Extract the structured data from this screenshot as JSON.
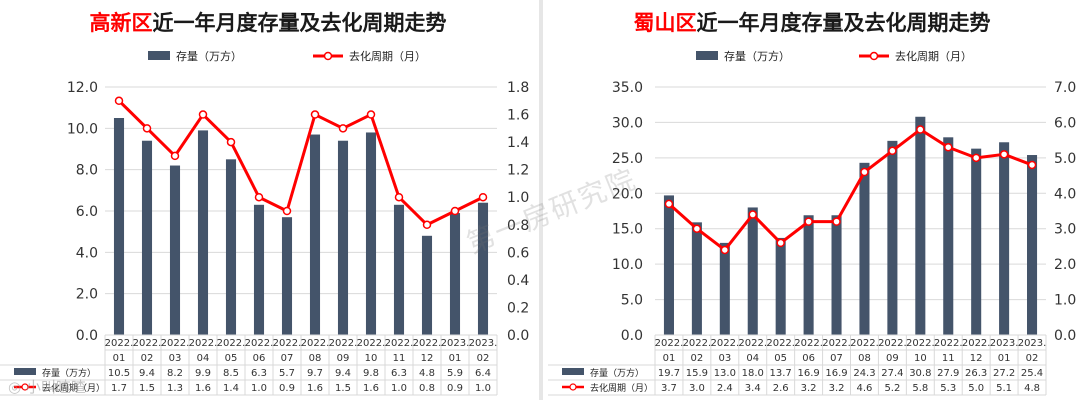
{
  "chart_data": [
    {
      "type": "bar",
      "title_region": "高新区",
      "title_rest": "近一年月度存量及去化周期走势",
      "legend": {
        "bar": "存量（万方）",
        "line": "去化周期（月）",
        "placement": "top"
      },
      "categories": [
        {
          "year": "2022.",
          "month": "01"
        },
        {
          "year": "2022.",
          "month": "02"
        },
        {
          "year": "2022.",
          "month": "03"
        },
        {
          "year": "2022.",
          "month": "04"
        },
        {
          "year": "2022.",
          "month": "05"
        },
        {
          "year": "2022.",
          "month": "06"
        },
        {
          "year": "2022.",
          "month": "07"
        },
        {
          "year": "2022.",
          "month": "08"
        },
        {
          "year": "2022.",
          "month": "09"
        },
        {
          "year": "2022.",
          "month": "10"
        },
        {
          "year": "2022.",
          "month": "11"
        },
        {
          "year": "2022.",
          "month": "12"
        },
        {
          "year": "2023.",
          "month": "01"
        },
        {
          "year": "2023.",
          "month": "02"
        }
      ],
      "series": [
        {
          "name": "存量（万方）",
          "kind": "bar",
          "axis": "left",
          "values": [
            10.5,
            9.4,
            8.2,
            9.9,
            8.5,
            6.3,
            5.7,
            9.7,
            9.4,
            9.8,
            6.3,
            4.8,
            5.9,
            6.4
          ],
          "labels": [
            "10.5",
            "9.4",
            "8.2",
            "9.9",
            "8.5",
            "6.3",
            "5.7",
            "9.7",
            "9.4",
            "9.8",
            "6.3",
            "4.8",
            "5.9",
            "6.4"
          ]
        },
        {
          "name": "去化周期（月）",
          "kind": "line",
          "axis": "right",
          "values": [
            1.7,
            1.5,
            1.3,
            1.6,
            1.4,
            1.0,
            0.9,
            1.6,
            1.5,
            1.6,
            1.0,
            0.8,
            0.9,
            1.0
          ],
          "labels": [
            "1.7",
            "1.5",
            "1.3",
            "1.6",
            "1.4",
            "1.0",
            "0.9",
            "1.6",
            "1.5",
            "1.6",
            "1.0",
            "0.8",
            "0.9",
            "1.0"
          ]
        }
      ],
      "left_axis": {
        "min": 0,
        "max": 12,
        "step": 2,
        "ticks": [
          "0.0",
          "2.0",
          "4.0",
          "6.0",
          "8.0",
          "10.0",
          "12.0"
        ]
      },
      "right_axis": {
        "min": 0,
        "max": 1.8,
        "step": 0.2,
        "ticks": [
          "0.0",
          "0.2",
          "0.4",
          "0.6",
          "0.8",
          "1.0",
          "1.2",
          "1.4",
          "1.6",
          "1.8"
        ]
      },
      "grid": true
    },
    {
      "type": "bar",
      "title_region": "蜀山区",
      "title_rest": "近一年月度存量及去化周期走势",
      "legend": {
        "bar": "存量（万方）",
        "line": "去化周期（月）",
        "placement": "top"
      },
      "categories": [
        {
          "year": "2022.",
          "month": "01"
        },
        {
          "year": "2022.",
          "month": "02"
        },
        {
          "year": "2022.",
          "month": "03"
        },
        {
          "year": "2022.",
          "month": "04"
        },
        {
          "year": "2022.",
          "month": "05"
        },
        {
          "year": "2022.",
          "month": "06"
        },
        {
          "year": "2022.",
          "month": "07"
        },
        {
          "year": "2022.",
          "month": "08"
        },
        {
          "year": "2022.",
          "month": "09"
        },
        {
          "year": "2022.",
          "month": "10"
        },
        {
          "year": "2022.",
          "month": "11"
        },
        {
          "year": "2022.",
          "month": "12"
        },
        {
          "year": "2023.",
          "month": "01"
        },
        {
          "year": "2023.",
          "month": "02"
        }
      ],
      "series": [
        {
          "name": "存量（万方）",
          "kind": "bar",
          "axis": "left",
          "values": [
            19.7,
            15.9,
            13.0,
            18.0,
            13.7,
            16.9,
            16.9,
            24.3,
            27.4,
            30.8,
            27.9,
            26.3,
            27.2,
            25.4
          ],
          "labels": [
            "19.7",
            "15.9",
            "13.0",
            "18.0",
            "13.7",
            "16.9",
            "16.9",
            "24.3",
            "27.4",
            "30.8",
            "27.9",
            "26.3",
            "27.2",
            "25.4"
          ]
        },
        {
          "name": "去化周期（月）",
          "kind": "line",
          "axis": "right",
          "values": [
            3.7,
            3.0,
            2.4,
            3.4,
            2.6,
            3.2,
            3.2,
            4.6,
            5.2,
            5.8,
            5.3,
            5.0,
            5.1,
            4.8
          ],
          "labels": [
            "3.7",
            "3.0",
            "2.4",
            "3.4",
            "2.6",
            "3.2",
            "3.2",
            "4.6",
            "5.2",
            "5.8",
            "5.3",
            "5.0",
            "5.1",
            "4.8"
          ]
        }
      ],
      "left_axis": {
        "min": 0,
        "max": 35,
        "step": 5,
        "ticks": [
          "0.0",
          "5.0",
          "10.0",
          "15.0",
          "20.0",
          "25.0",
          "30.0",
          "35.0"
        ]
      },
      "right_axis": {
        "min": 0,
        "max": 7,
        "step": 1,
        "ticks": [
          "0.0",
          "1.0",
          "2.0",
          "3.0",
          "4.0",
          "5.0",
          "6.0",
          "7.0"
        ]
      },
      "grid": true
    }
  ],
  "colors": {
    "bar": "#44546a",
    "line": "#ff0000",
    "title_accent": "#ff0000",
    "title_text": "#1a1a1a",
    "grid": "#d9d9d9"
  },
  "watermark": "第一房研究院",
  "corner_mark": "◎ 小叫喳喳"
}
